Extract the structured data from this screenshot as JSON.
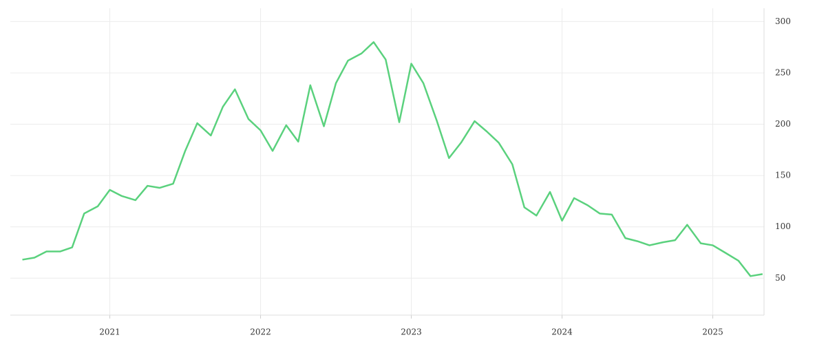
{
  "chart_data": {
    "type": "line",
    "x": [
      2020.42,
      2020.5,
      2020.58,
      2020.67,
      2020.75,
      2020.83,
      2020.92,
      2021.0,
      2021.08,
      2021.17,
      2021.25,
      2021.33,
      2021.42,
      2021.5,
      2021.58,
      2021.67,
      2021.75,
      2021.83,
      2021.92,
      2022.0,
      2022.08,
      2022.17,
      2022.25,
      2022.33,
      2022.42,
      2022.5,
      2022.58,
      2022.67,
      2022.75,
      2022.83,
      2022.92,
      2023.0,
      2023.08,
      2023.17,
      2023.25,
      2023.33,
      2023.42,
      2023.5,
      2023.58,
      2023.67,
      2023.75,
      2023.83,
      2023.92,
      2024.0,
      2024.08,
      2024.17,
      2024.25,
      2024.33,
      2024.42,
      2024.5,
      2024.58,
      2024.67,
      2024.75,
      2024.83,
      2024.92,
      2025.0,
      2025.08,
      2025.17,
      2025.25,
      2025.33
    ],
    "series": [
      {
        "color": "#5ad17d",
        "values": [
          68,
          70,
          76,
          76,
          80,
          113,
          120,
          136,
          130,
          126,
          140,
          138,
          142,
          174,
          201,
          189,
          217,
          234,
          205,
          194,
          174,
          199,
          183,
          238,
          198,
          240,
          262,
          269,
          280,
          263,
          202,
          259,
          240,
          203,
          167,
          182,
          203,
          193,
          182,
          161,
          119,
          111,
          134,
          106,
          128,
          121,
          113,
          112,
          89,
          86,
          82,
          85,
          87,
          102,
          84,
          82,
          75,
          67,
          52,
          54
        ]
      }
    ],
    "xlim": [
      2020.34,
      2025.34
    ],
    "xticks": [
      2021,
      2022,
      2023,
      2024,
      2025
    ],
    "ylim": [
      14,
      313
    ],
    "yticks": [
      50,
      100,
      150,
      200,
      250,
      300
    ],
    "grid": true
  }
}
